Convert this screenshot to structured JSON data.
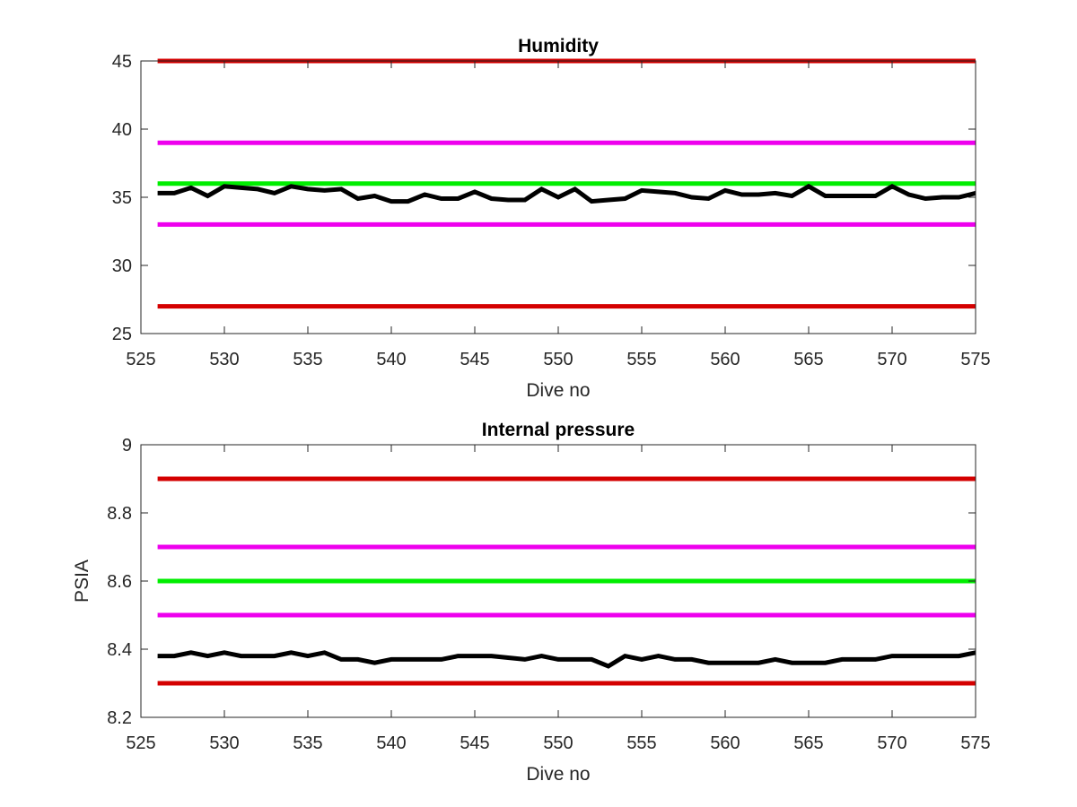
{
  "chart_data": [
    {
      "type": "line",
      "title": "Humidity",
      "xlabel": "Dive no",
      "ylabel": "",
      "xlim": [
        525,
        575
      ],
      "ylim": [
        25,
        45
      ],
      "xticks": [
        "525",
        "530",
        "535",
        "540",
        "545",
        "550",
        "555",
        "560",
        "565",
        "570",
        "575"
      ],
      "yticks": [
        "25",
        "30",
        "35",
        "40",
        "45"
      ],
      "grid": false,
      "hlines": [
        {
          "y": 45,
          "color": "#d40000"
        },
        {
          "y": 39,
          "color": "#ee00ee"
        },
        {
          "y": 36,
          "color": "#00ee00"
        },
        {
          "y": 33,
          "color": "#ee00ee"
        },
        {
          "y": 27,
          "color": "#d40000"
        }
      ],
      "series": [
        {
          "color": "#000000",
          "x": [
            526,
            527,
            528,
            529,
            530,
            531,
            532,
            533,
            534,
            535,
            536,
            537,
            538,
            539,
            540,
            541,
            542,
            543,
            544,
            545,
            546,
            547,
            548,
            549,
            550,
            551,
            552,
            553,
            554,
            555,
            556,
            557,
            558,
            559,
            560,
            561,
            562,
            563,
            564,
            565,
            566,
            567,
            568,
            569,
            570,
            571,
            572,
            573,
            574,
            575
          ],
          "values": [
            35.3,
            35.3,
            35.7,
            35.1,
            35.8,
            35.7,
            35.6,
            35.3,
            35.8,
            35.6,
            35.5,
            35.6,
            34.9,
            35.1,
            34.7,
            34.7,
            35.2,
            34.9,
            34.9,
            35.4,
            34.9,
            34.8,
            34.8,
            35.6,
            35.0,
            35.6,
            34.7,
            34.8,
            34.9,
            35.5,
            35.4,
            35.3,
            35.0,
            34.9,
            35.5,
            35.2,
            35.2,
            35.3,
            35.1,
            35.8,
            35.1,
            35.1,
            35.1,
            35.1,
            35.8,
            35.2,
            34.9,
            35.0,
            35.0,
            35.3
          ]
        }
      ]
    },
    {
      "type": "line",
      "title": "Internal pressure",
      "xlabel": "Dive no",
      "ylabel": "PSIA",
      "xlim": [
        525,
        575
      ],
      "ylim": [
        8.2,
        9
      ],
      "xticks": [
        "525",
        "530",
        "535",
        "540",
        "545",
        "550",
        "555",
        "560",
        "565",
        "570",
        "575"
      ],
      "yticks": [
        "8.2",
        "8.4",
        "8.6",
        "8.8",
        "9"
      ],
      "grid": false,
      "hlines": [
        {
          "y": 8.9,
          "color": "#d40000"
        },
        {
          "y": 8.7,
          "color": "#ee00ee"
        },
        {
          "y": 8.6,
          "color": "#00ee00"
        },
        {
          "y": 8.5,
          "color": "#ee00ee"
        },
        {
          "y": 8.3,
          "color": "#d40000"
        }
      ],
      "series": [
        {
          "color": "#000000",
          "x": [
            526,
            527,
            528,
            529,
            530,
            531,
            532,
            533,
            534,
            535,
            536,
            537,
            538,
            539,
            540,
            541,
            542,
            543,
            544,
            545,
            546,
            547,
            548,
            549,
            550,
            551,
            552,
            553,
            554,
            555,
            556,
            557,
            558,
            559,
            560,
            561,
            562,
            563,
            564,
            565,
            566,
            567,
            568,
            569,
            570,
            571,
            572,
            573,
            574,
            575
          ],
          "values": [
            8.38,
            8.38,
            8.39,
            8.38,
            8.39,
            8.38,
            8.38,
            8.38,
            8.39,
            8.38,
            8.39,
            8.37,
            8.37,
            8.36,
            8.37,
            8.37,
            8.37,
            8.37,
            8.38,
            8.38,
            8.38,
            8.375,
            8.37,
            8.38,
            8.37,
            8.37,
            8.37,
            8.35,
            8.38,
            8.37,
            8.38,
            8.37,
            8.37,
            8.36,
            8.36,
            8.36,
            8.36,
            8.37,
            8.36,
            8.36,
            8.36,
            8.37,
            8.37,
            8.37,
            8.38,
            8.38,
            8.38,
            8.38,
            8.38,
            8.39
          ]
        }
      ]
    }
  ]
}
